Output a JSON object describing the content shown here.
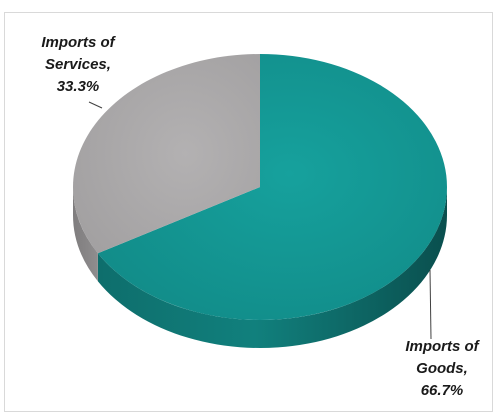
{
  "chart_data": {
    "type": "pie",
    "title": "",
    "style": "3d",
    "slices": [
      {
        "name": "Imports of Goods",
        "value": 66.7,
        "value_label": "66.7%",
        "color": "#13928f"
      },
      {
        "name": "Imports of Services",
        "value": 33.3,
        "value_label": "33.3%",
        "color": "#a9a7a8"
      }
    ],
    "labels": {
      "goods": {
        "line1": "Imports of",
        "line2": "Goods,",
        "line3": "66.7%"
      },
      "services": {
        "line1": "Imports of",
        "line2": "Services,",
        "line3": "33.3%"
      }
    }
  }
}
